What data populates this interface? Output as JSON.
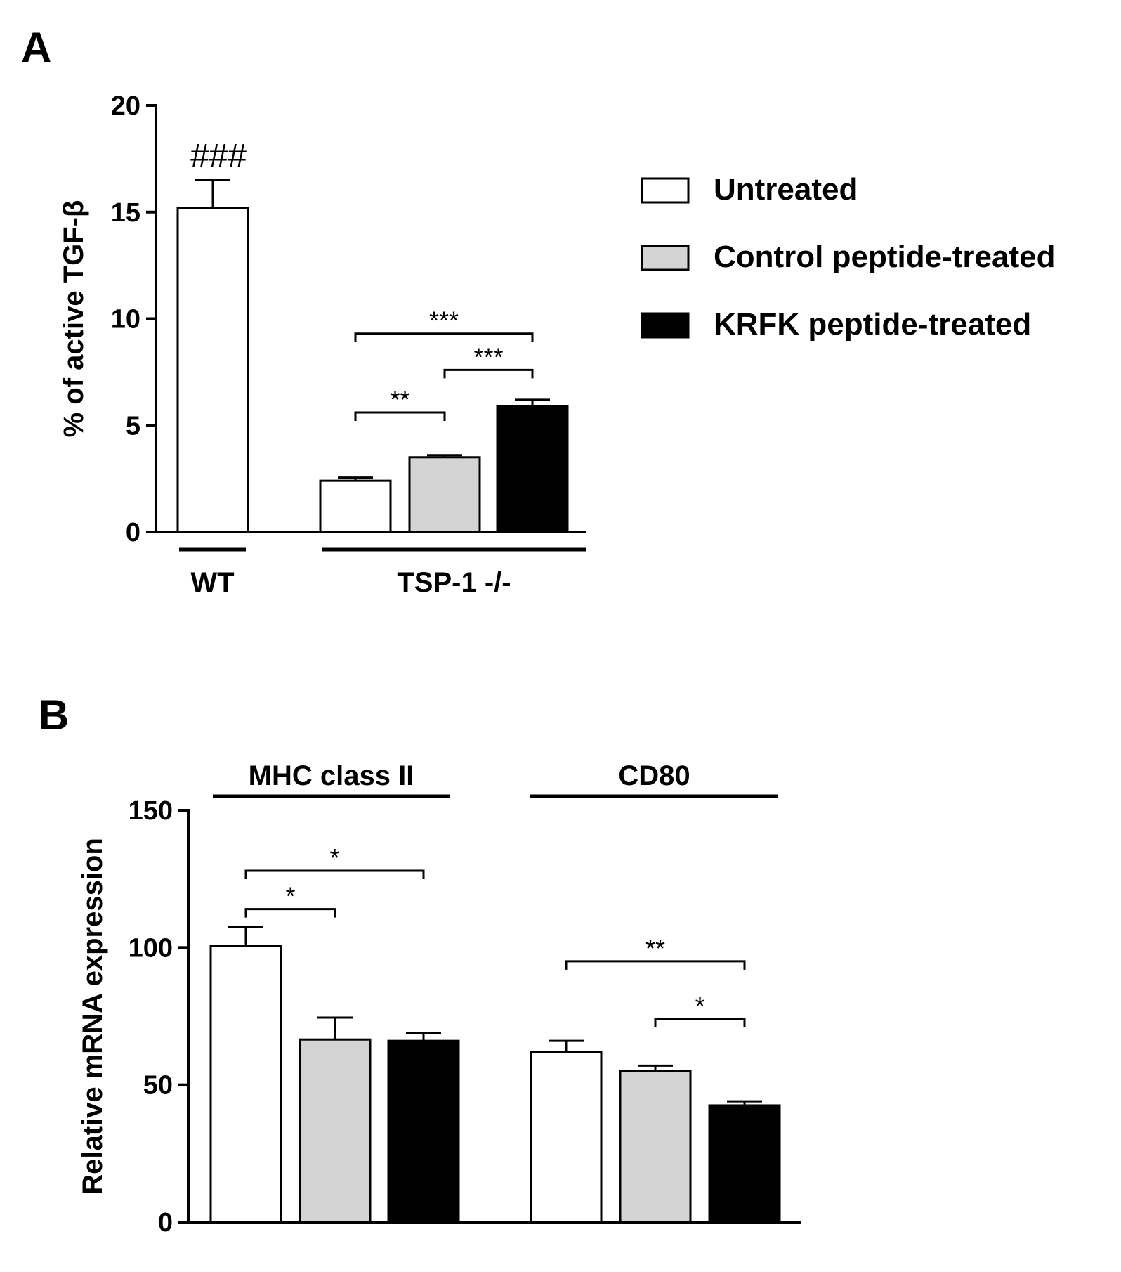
{
  "chart_data": [
    {
      "panel_label": "A",
      "type": "bar",
      "ylabel": "% of active TGF-β",
      "ylim": [
        0,
        20
      ],
      "yticks": [
        0,
        5,
        10,
        15,
        20
      ],
      "series_names": [
        "Untreated",
        "Control peptide-treated",
        "KRFK peptide-treated"
      ],
      "series_colors": [
        "#ffffff",
        "#d4d4d4",
        "#000000"
      ],
      "groups": [
        {
          "label": "WT",
          "bars": [
            {
              "series": 0,
              "value": 15.2,
              "error": 1.3
            }
          ],
          "annotation": "###"
        },
        {
          "label": "TSP-1 -/-",
          "bars": [
            {
              "series": 0,
              "value": 2.4,
              "error": 0.15
            },
            {
              "series": 1,
              "value": 3.5,
              "error": 0.1
            },
            {
              "series": 2,
              "value": 5.9,
              "error": 0.3
            }
          ]
        }
      ],
      "significance": [
        {
          "group": 1,
          "from": 0,
          "to": 1,
          "label": "**",
          "level": 5.6
        },
        {
          "group": 1,
          "from": 1,
          "to": 2,
          "label": "***",
          "level": 7.6
        },
        {
          "group": 1,
          "from": 0,
          "to": 2,
          "label": "***",
          "level": 9.3
        }
      ],
      "legend": {
        "position": "right",
        "entries": [
          "Untreated",
          "Control peptide-treated",
          "KRFK peptide-treated"
        ]
      }
    },
    {
      "panel_label": "B",
      "type": "bar",
      "ylabel": "Relative mRNA expression",
      "ylim": [
        0,
        150
      ],
      "yticks": [
        0,
        50,
        100,
        150
      ],
      "series_names": [
        "Untreated",
        "Control peptide-treated",
        "KRFK peptide-treated"
      ],
      "series_colors": [
        "#ffffff",
        "#d4d4d4",
        "#000000"
      ],
      "groups": [
        {
          "label": "MHC class II",
          "bars": [
            {
              "series": 0,
              "value": 100.5,
              "error": 7
            },
            {
              "series": 1,
              "value": 66.5,
              "error": 8
            },
            {
              "series": 2,
              "value": 66,
              "error": 3
            }
          ]
        },
        {
          "label": "CD80",
          "bars": [
            {
              "series": 0,
              "value": 62,
              "error": 4
            },
            {
              "series": 1,
              "value": 55,
              "error": 2
            },
            {
              "series": 2,
              "value": 42.5,
              "error": 1.5
            }
          ]
        }
      ],
      "significance": [
        {
          "group": 0,
          "from": 0,
          "to": 1,
          "label": "*",
          "level": 114
        },
        {
          "group": 0,
          "from": 0,
          "to": 2,
          "label": "*",
          "level": 128
        },
        {
          "group": 1,
          "from": 1,
          "to": 2,
          "label": "*",
          "level": 74
        },
        {
          "group": 1,
          "from": 0,
          "to": 2,
          "label": "**",
          "level": 95
        }
      ]
    }
  ]
}
